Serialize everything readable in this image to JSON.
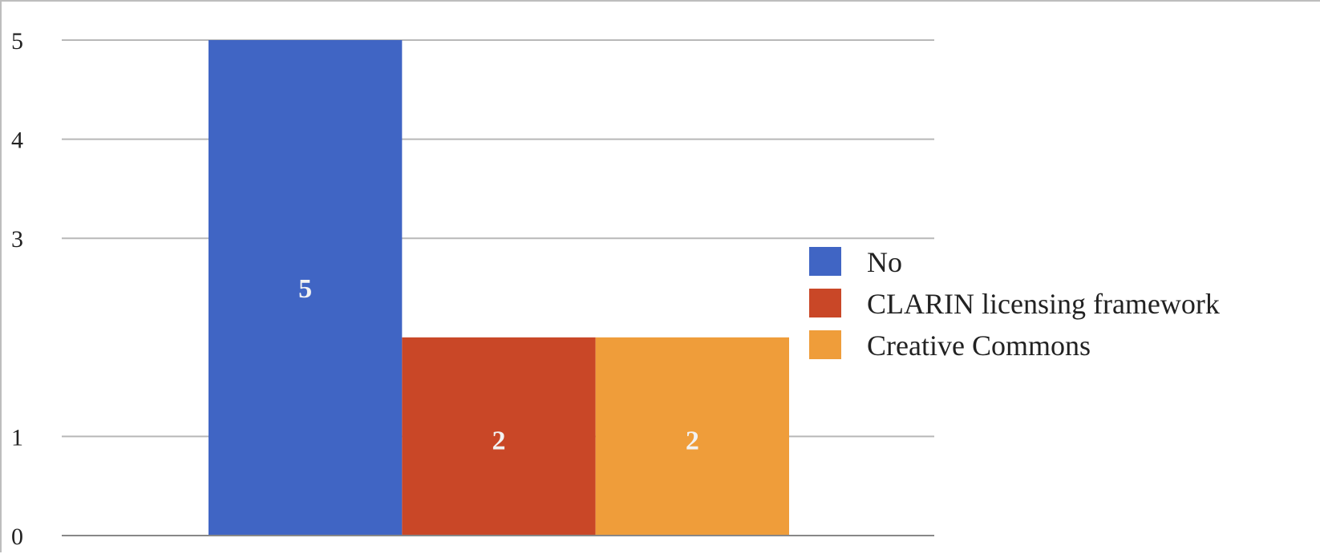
{
  "chart_data": {
    "type": "bar",
    "title": "",
    "xlabel": "",
    "ylabel": "",
    "ylim": [
      0,
      5
    ],
    "yticks": [
      "0",
      "1",
      "3",
      "4",
      "5"
    ],
    "grid": true,
    "legend_position": "right",
    "categories": [
      ""
    ],
    "series": [
      {
        "name": "No",
        "values": [
          5
        ],
        "color": "#4065c4",
        "data_label": "5"
      },
      {
        "name": "CLARIN licensing framework",
        "values": [
          2
        ],
        "color": "#c94727",
        "data_label": "2"
      },
      {
        "name": "Creative Commons",
        "values": [
          2
        ],
        "color": "#ef9d3a",
        "data_label": "2"
      }
    ],
    "grid_color": "#b8b8b8",
    "axis_color": "#888888"
  }
}
